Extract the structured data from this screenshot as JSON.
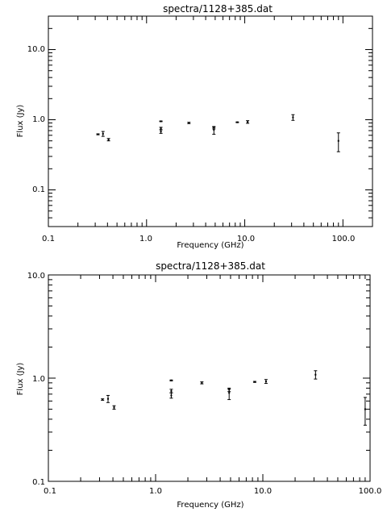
{
  "chart_data": [
    {
      "type": "scatter",
      "title": "spectra/1128+385.dat",
      "xlabel": "Frequency (GHz)",
      "ylabel": "Flux (Jy)",
      "xscale": "log",
      "yscale": "log",
      "xlim": [
        0.1,
        200
      ],
      "ylim": [
        0.03,
        30
      ],
      "grid": false,
      "x_tick_labels": [
        "0.1",
        "1.0",
        "10.0",
        "100.0"
      ],
      "y_tick_labels": [
        "0.1",
        "1.0",
        "10.0"
      ],
      "points": [
        {
          "x": 0.32,
          "y": 0.62,
          "ylo": 0.61,
          "yhi": 0.63
        },
        {
          "x": 0.36,
          "y": 0.63,
          "ylo": 0.58,
          "yhi": 0.68
        },
        {
          "x": 0.41,
          "y": 0.52,
          "ylo": 0.5,
          "yhi": 0.54
        },
        {
          "x": 1.4,
          "y": 0.95,
          "ylo": 0.94,
          "yhi": 0.96
        },
        {
          "x": 1.4,
          "y": 0.75,
          "ylo": 0.72,
          "yhi": 0.78
        },
        {
          "x": 1.4,
          "y": 0.68,
          "ylo": 0.64,
          "yhi": 0.72
        },
        {
          "x": 2.7,
          "y": 0.9,
          "ylo": 0.88,
          "yhi": 0.92
        },
        {
          "x": 4.85,
          "y": 0.78,
          "ylo": 0.74,
          "yhi": 0.8
        },
        {
          "x": 4.85,
          "y": 0.72,
          "ylo": 0.62,
          "yhi": 0.78
        },
        {
          "x": 8.4,
          "y": 0.92,
          "ylo": 0.91,
          "yhi": 0.93
        },
        {
          "x": 10.7,
          "y": 0.93,
          "ylo": 0.89,
          "yhi": 0.97
        },
        {
          "x": 31,
          "y": 1.08,
          "ylo": 0.98,
          "yhi": 1.18
        },
        {
          "x": 90,
          "y": 0.5,
          "ylo": 0.35,
          "yhi": 0.65
        }
      ]
    },
    {
      "type": "scatter",
      "title": "spectra/1128+385.dat",
      "xlabel": "Frequency (GHz)",
      "ylabel": "Flux (Jy)",
      "xscale": "log",
      "yscale": "log",
      "xlim": [
        0.1,
        100
      ],
      "ylim": [
        0.1,
        10
      ],
      "grid": false,
      "x_tick_labels": [
        "0.1",
        "1.0",
        "10.0",
        "100.0"
      ],
      "y_tick_labels": [
        "0.1",
        "1.0",
        "10.0"
      ],
      "points": [
        {
          "x": 0.32,
          "y": 0.62,
          "ylo": 0.61,
          "yhi": 0.63
        },
        {
          "x": 0.36,
          "y": 0.63,
          "ylo": 0.58,
          "yhi": 0.68
        },
        {
          "x": 0.41,
          "y": 0.52,
          "ylo": 0.5,
          "yhi": 0.54
        },
        {
          "x": 1.4,
          "y": 0.95,
          "ylo": 0.94,
          "yhi": 0.96
        },
        {
          "x": 1.4,
          "y": 0.75,
          "ylo": 0.72,
          "yhi": 0.78
        },
        {
          "x": 1.4,
          "y": 0.68,
          "ylo": 0.64,
          "yhi": 0.72
        },
        {
          "x": 2.7,
          "y": 0.9,
          "ylo": 0.88,
          "yhi": 0.92
        },
        {
          "x": 4.85,
          "y": 0.78,
          "ylo": 0.74,
          "yhi": 0.8
        },
        {
          "x": 4.85,
          "y": 0.72,
          "ylo": 0.62,
          "yhi": 0.78
        },
        {
          "x": 8.4,
          "y": 0.92,
          "ylo": 0.91,
          "yhi": 0.93
        },
        {
          "x": 10.7,
          "y": 0.93,
          "ylo": 0.89,
          "yhi": 0.97
        },
        {
          "x": 31,
          "y": 1.08,
          "ylo": 0.98,
          "yhi": 1.18
        },
        {
          "x": 90,
          "y": 0.5,
          "ylo": 0.35,
          "yhi": 0.65
        }
      ]
    }
  ]
}
